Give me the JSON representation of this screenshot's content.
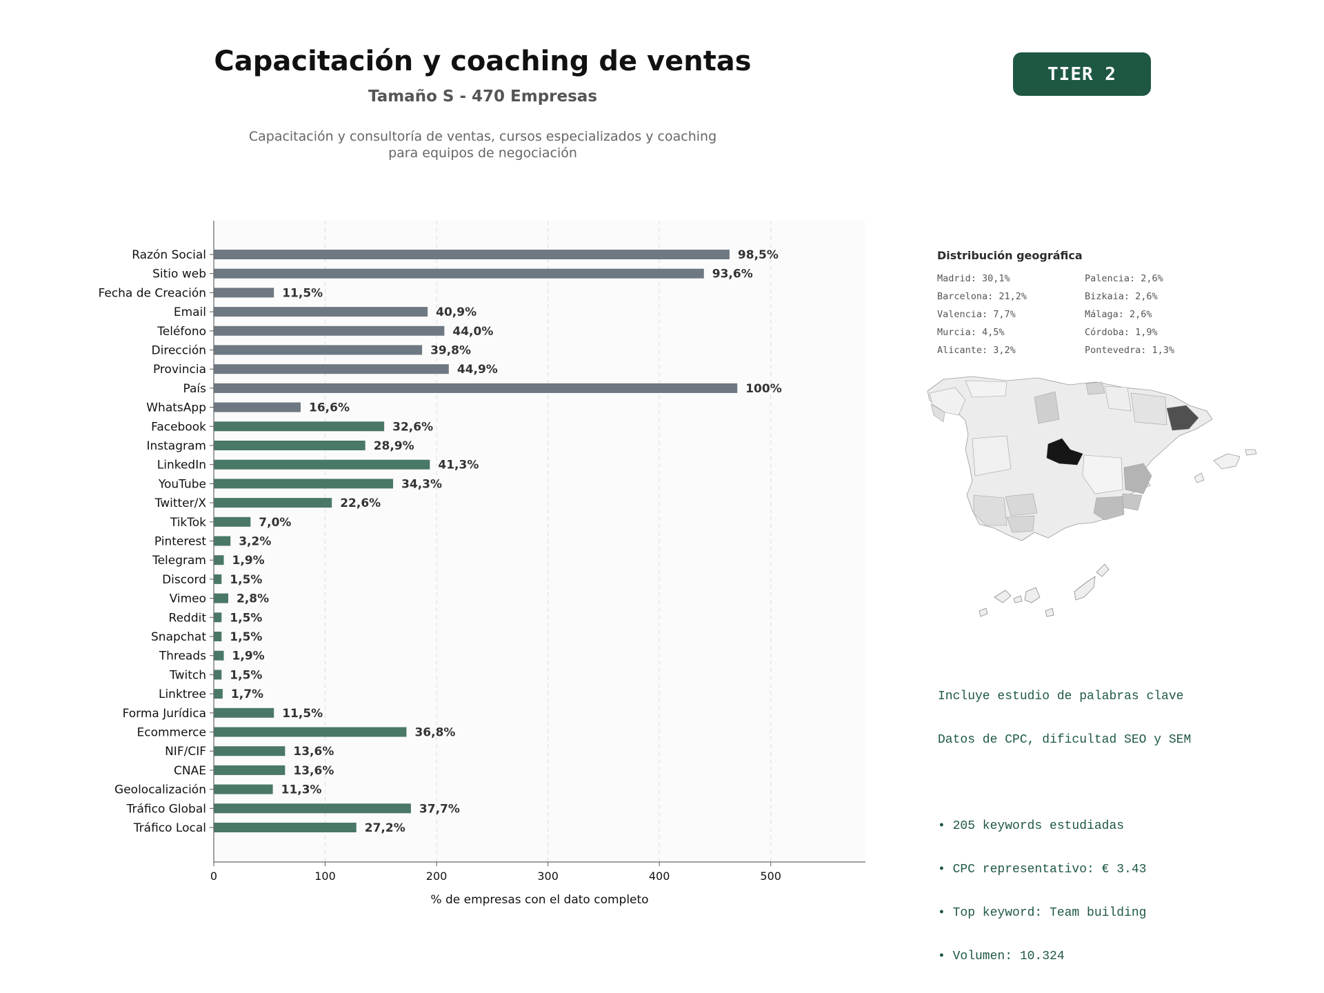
{
  "header": {
    "title": "Capacitación y coaching de ventas",
    "subtitle": "Tamaño S - 470 Empresas",
    "description_lines": [
      "Capacitación y consultoría de ventas, cursos especializados y coaching",
      "para equipos de negociación"
    ],
    "tier_badge": "TIER 2"
  },
  "chart_data": {
    "type": "bar",
    "orientation": "horizontal",
    "xlabel": "% de empresas con el dato completo",
    "xlim": [
      0,
      585
    ],
    "xticks": [
      0,
      100,
      200,
      300,
      400,
      500
    ],
    "grid": "vertical dashed",
    "colors": {
      "basic": "#6e7882",
      "digital": "#4a7866"
    },
    "categories": [
      "Razón Social",
      "Sitio web",
      "Fecha de Creación",
      "Email",
      "Teléfono",
      "Dirección",
      "Provincia",
      "País",
      "WhatsApp",
      "Facebook",
      "Instagram",
      "LinkedIn",
      "YouTube",
      "Twitter/X",
      "TikTok",
      "Pinterest",
      "Telegram",
      "Discord",
      "Vimeo",
      "Reddit",
      "Snapchat",
      "Threads",
      "Twitch",
      "Linktree",
      "Forma Jurídica",
      "Ecommerce",
      "NIF/CIF",
      "CNAE",
      "Geolocalización",
      "Tráfico Global",
      "Tráfico Local"
    ],
    "values": [
      463,
      440,
      54,
      192,
      207,
      187,
      211,
      470,
      78,
      153,
      136,
      194,
      161,
      106,
      33,
      15,
      9,
      7,
      13,
      7,
      7,
      9,
      7,
      8,
      54,
      173,
      64,
      64,
      53,
      177,
      128
    ],
    "data_labels": [
      "98,5%",
      "93,6%",
      "11,5%",
      "40,9%",
      "44,0%",
      "39,8%",
      "44,9%",
      "100%",
      "16,6%",
      "32,6%",
      "28,9%",
      "41,3%",
      "34,3%",
      "22,6%",
      "7,0%",
      "3,2%",
      "1,9%",
      "1,5%",
      "2,8%",
      "1,5%",
      "1,5%",
      "1,9%",
      "1,5%",
      "1,7%",
      "11,5%",
      "36,8%",
      "13,6%",
      "13,6%",
      "11,3%",
      "37,7%",
      "27,2%"
    ],
    "color_groups": [
      "basic",
      "basic",
      "basic",
      "basic",
      "basic",
      "basic",
      "basic",
      "basic",
      "basic",
      "digital",
      "digital",
      "digital",
      "digital",
      "digital",
      "digital",
      "digital",
      "digital",
      "digital",
      "digital",
      "digital",
      "digital",
      "digital",
      "digital",
      "digital",
      "digital",
      "digital",
      "digital",
      "digital",
      "digital",
      "digital",
      "digital"
    ]
  },
  "geo": {
    "title": "Distribución geográfica",
    "left_column": [
      "Madrid: 30,1%",
      "Barcelona: 21,2%",
      "Valencia: 7,7%",
      "Murcia: 4,5%",
      "Alicante: 3,2%"
    ],
    "right_column": [
      "Palencia: 2,6%",
      "Bizkaia: 2,6%",
      "Málaga: 2,6%",
      "Córdoba: 1,9%",
      "Pontevedra: 1,3%"
    ]
  },
  "keywords": {
    "line1": "Incluye estudio de palabras clave",
    "line2": "Datos de CPC, dificultad SEO y SEM",
    "bullets": [
      "• 205 keywords estudiadas",
      "• CPC representativo: € 3.43",
      "• Top keyword: Team building",
      "• Volumen: 10.324"
    ]
  }
}
